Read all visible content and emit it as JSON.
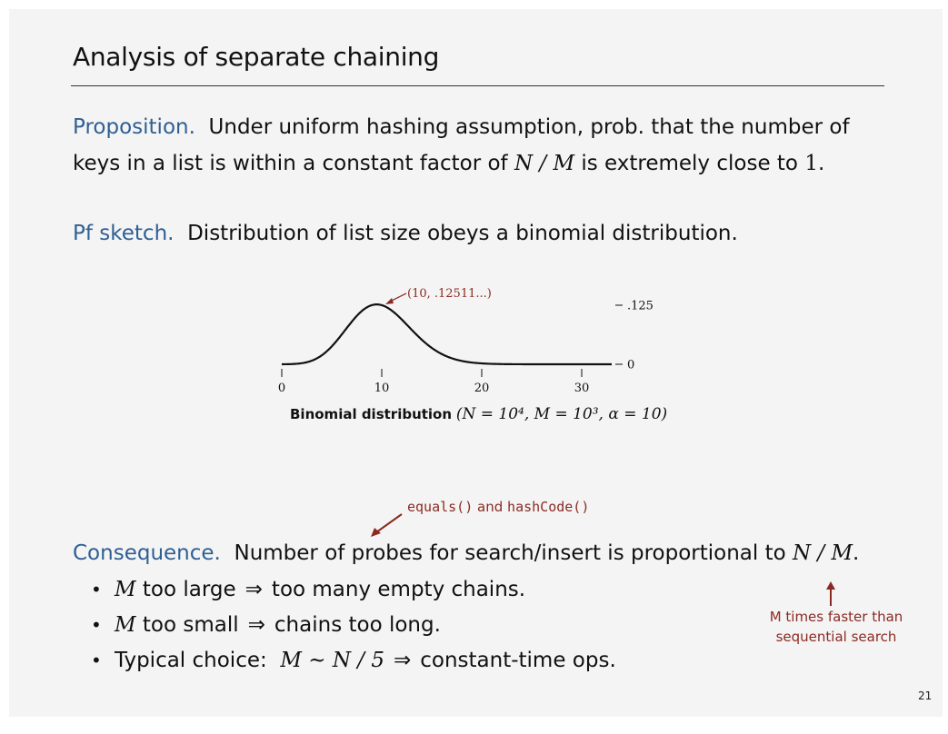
{
  "slide": {
    "title": "Analysis of separate chaining",
    "page_number": "21"
  },
  "proposition": {
    "label": "Proposition.",
    "line1": "Under uniform hashing assumption, prob. that the number of",
    "line2_pre": "keys in a list is within a constant factor of",
    "line2_math": "N / M",
    "line2_mid": "is extremely close to",
    "line2_num": "1",
    "line2_end": "."
  },
  "proof": {
    "label": "Pf sketch.",
    "text": "Distribution of list size obeys a binomial distribution."
  },
  "chart_data": {
    "type": "line",
    "x_ticks": [
      "0",
      "10",
      "20",
      "30"
    ],
    "y_ticks": [
      ".125",
      "0"
    ],
    "peak_annotation": "(10, .12511...)",
    "n": 10000,
    "p": 0.001,
    "x_range": [
      0,
      33
    ],
    "y_range": [
      0,
      0.125
    ],
    "caption_bold": "Binomial distribution",
    "caption_math": "(N = 10⁴, M = 10³, α = 10)"
  },
  "annotation_top": {
    "code1": "equals()",
    "and": "and",
    "code2": "hashCode()"
  },
  "consequence": {
    "label": "Consequence.",
    "text": "Number of probes for search/insert is proportional to",
    "math": "N / M",
    "end": "."
  },
  "bullets": [
    {
      "math": "M",
      "text": "too large",
      "arrow": "⇒",
      "rest": "too many empty chains."
    },
    {
      "math": "M",
      "text": "too small",
      "arrow": "⇒",
      "rest": "chains too long."
    },
    {
      "math": "",
      "text": "Typical choice:",
      "expr": "M ~ N / 5",
      "arrow": "⇒",
      "rest": "constant-time ops."
    }
  ],
  "annotation_side": {
    "line1": "M times faster than",
    "line2": "sequential search"
  },
  "colors": {
    "label_blue": "#2f5f93",
    "annotation_red": "#8b2a22"
  }
}
